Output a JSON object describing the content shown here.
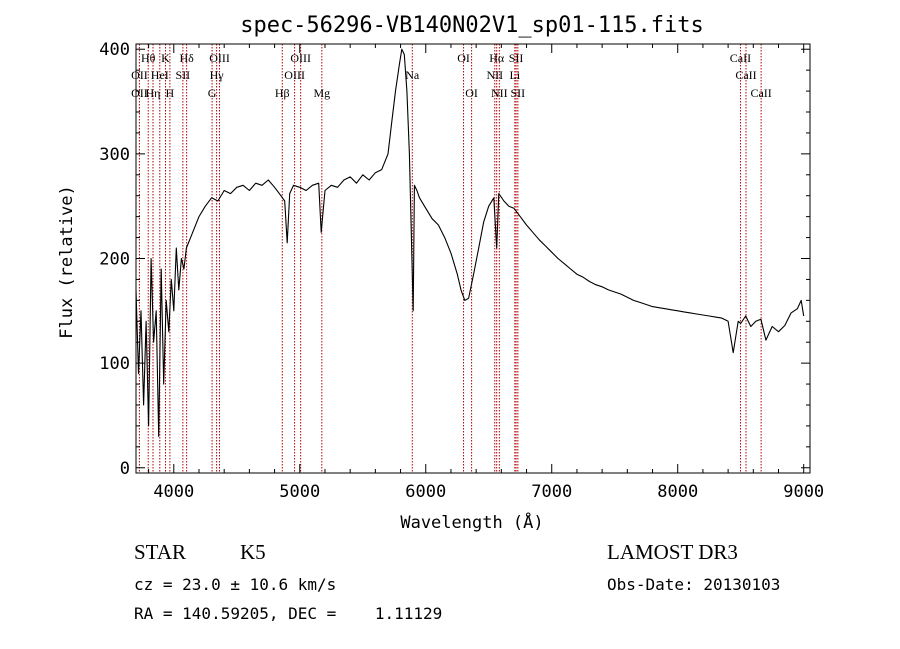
{
  "chart_data": {
    "type": "line",
    "title": "spec-56296-VB140N02V1_sp01-115.fits",
    "xlabel": "Wavelength (Å)",
    "ylabel": "Flux (relative)",
    "xlim": [
      3700,
      9050
    ],
    "ylim": [
      -5,
      405
    ],
    "xticks": [
      4000,
      5000,
      6000,
      7000,
      8000,
      9000
    ],
    "yticks": [
      0,
      100,
      200,
      300,
      400
    ],
    "grid": false,
    "series": [
      {
        "name": "flux",
        "x": [
          3700,
          3720,
          3740,
          3760,
          3780,
          3800,
          3820,
          3840,
          3860,
          3880,
          3900,
          3920,
          3940,
          3960,
          3980,
          4000,
          4020,
          4040,
          4060,
          4080,
          4100,
          4150,
          4200,
          4250,
          4300,
          4350,
          4400,
          4450,
          4500,
          4550,
          4600,
          4650,
          4700,
          4750,
          4800,
          4850,
          4880,
          4900,
          4920,
          4950,
          5000,
          5050,
          5100,
          5150,
          5170,
          5200,
          5250,
          5300,
          5350,
          5400,
          5450,
          5500,
          5550,
          5600,
          5650,
          5700,
          5730,
          5760,
          5790,
          5810,
          5830,
          5850,
          5870,
          5890,
          5900,
          5910,
          5930,
          5950,
          6000,
          6050,
          6100,
          6150,
          6200,
          6250,
          6280,
          6310,
          6340,
          6380,
          6420,
          6460,
          6500,
          6540,
          6563,
          6580,
          6620,
          6660,
          6700,
          6750,
          6800,
          6850,
          6900,
          6950,
          7000,
          7050,
          7100,
          7150,
          7200,
          7250,
          7300,
          7350,
          7400,
          7450,
          7500,
          7550,
          7600,
          7650,
          7700,
          7750,
          7800,
          7850,
          7900,
          7950,
          8000,
          8050,
          8100,
          8150,
          8200,
          8250,
          8300,
          8350,
          8400,
          8440,
          8480,
          8500,
          8540,
          8580,
          8620,
          8660,
          8700,
          8750,
          8800,
          8850,
          8900,
          8950,
          8980,
          9000
        ],
        "values": [
          170,
          90,
          150,
          60,
          140,
          40,
          200,
          120,
          150,
          30,
          190,
          80,
          160,
          130,
          180,
          150,
          210,
          170,
          200,
          190,
          210,
          225,
          240,
          250,
          258,
          255,
          265,
          262,
          268,
          270,
          265,
          272,
          270,
          275,
          268,
          260,
          255,
          215,
          262,
          270,
          268,
          265,
          270,
          272,
          225,
          265,
          270,
          268,
          275,
          278,
          272,
          280,
          275,
          282,
          285,
          300,
          330,
          360,
          385,
          400,
          395,
          360,
          300,
          200,
          150,
          270,
          265,
          258,
          248,
          238,
          232,
          220,
          205,
          185,
          170,
          160,
          162,
          185,
          210,
          235,
          250,
          258,
          210,
          262,
          255,
          250,
          248,
          240,
          232,
          225,
          218,
          212,
          206,
          200,
          195,
          190,
          185,
          182,
          178,
          175,
          173,
          170,
          168,
          166,
          163,
          160,
          158,
          156,
          154,
          153,
          152,
          151,
          150,
          149,
          148,
          147,
          146,
          145,
          144,
          143,
          140,
          110,
          140,
          138,
          145,
          135,
          140,
          142,
          122,
          135,
          130,
          136,
          148,
          152,
          160,
          145
        ]
      }
    ],
    "line_labels": [
      {
        "wavelength": 3797,
        "label": "Hθ",
        "row": 1
      },
      {
        "wavelength": 3727,
        "label": "OII",
        "row": 2
      },
      {
        "wavelength": 3727,
        "label": "OII",
        "row": 3
      },
      {
        "wavelength": 3835,
        "label": "Hη",
        "row": 3
      },
      {
        "wavelength": 3889,
        "label": "HeI",
        "row": 2
      },
      {
        "wavelength": 3934,
        "label": "K",
        "row": 1
      },
      {
        "wavelength": 3969,
        "label": "H",
        "row": 3
      },
      {
        "wavelength": 4072,
        "label": "SII",
        "row": 2
      },
      {
        "wavelength": 4102,
        "label": "Hδ",
        "row": 1
      },
      {
        "wavelength": 4340,
        "label": "Hγ",
        "row": 2
      },
      {
        "wavelength": 4363,
        "label": "OIII",
        "row": 1
      },
      {
        "wavelength": 4304,
        "label": "G",
        "row": 3
      },
      {
        "wavelength": 4861,
        "label": "Hβ",
        "row": 3
      },
      {
        "wavelength": 4959,
        "label": "OIII",
        "row": 2
      },
      {
        "wavelength": 5007,
        "label": "OIII",
        "row": 1
      },
      {
        "wavelength": 5175,
        "label": "Mg",
        "row": 3
      },
      {
        "wavelength": 5893,
        "label": "Na",
        "row": 2
      },
      {
        "wavelength": 6300,
        "label": "OI",
        "row": 1
      },
      {
        "wavelength": 6364,
        "label": "OI",
        "row": 3
      },
      {
        "wavelength": 6548,
        "label": "NII",
        "row": 2
      },
      {
        "wavelength": 6563,
        "label": "Hα",
        "row": 1
      },
      {
        "wavelength": 6584,
        "label": "NII",
        "row": 3
      },
      {
        "wavelength": 6707,
        "label": "Li",
        "row": 2
      },
      {
        "wavelength": 6717,
        "label": "SII",
        "row": 1
      },
      {
        "wavelength": 6731,
        "label": "SII",
        "row": 3
      },
      {
        "wavelength": 8498,
        "label": "CaII",
        "row": 1
      },
      {
        "wavelength": 8542,
        "label": "CaII",
        "row": 2
      },
      {
        "wavelength": 8662,
        "label": "CaII",
        "row": 3
      }
    ]
  },
  "info": {
    "object_type": "STAR",
    "subclass": "K5",
    "survey": "LAMOST DR3",
    "cz": "cz = 23.0 ± 10.6 km/s",
    "obs_date": "Obs-Date: 20130103",
    "coords": "RA = 140.59205, DEC =    1.11129"
  }
}
